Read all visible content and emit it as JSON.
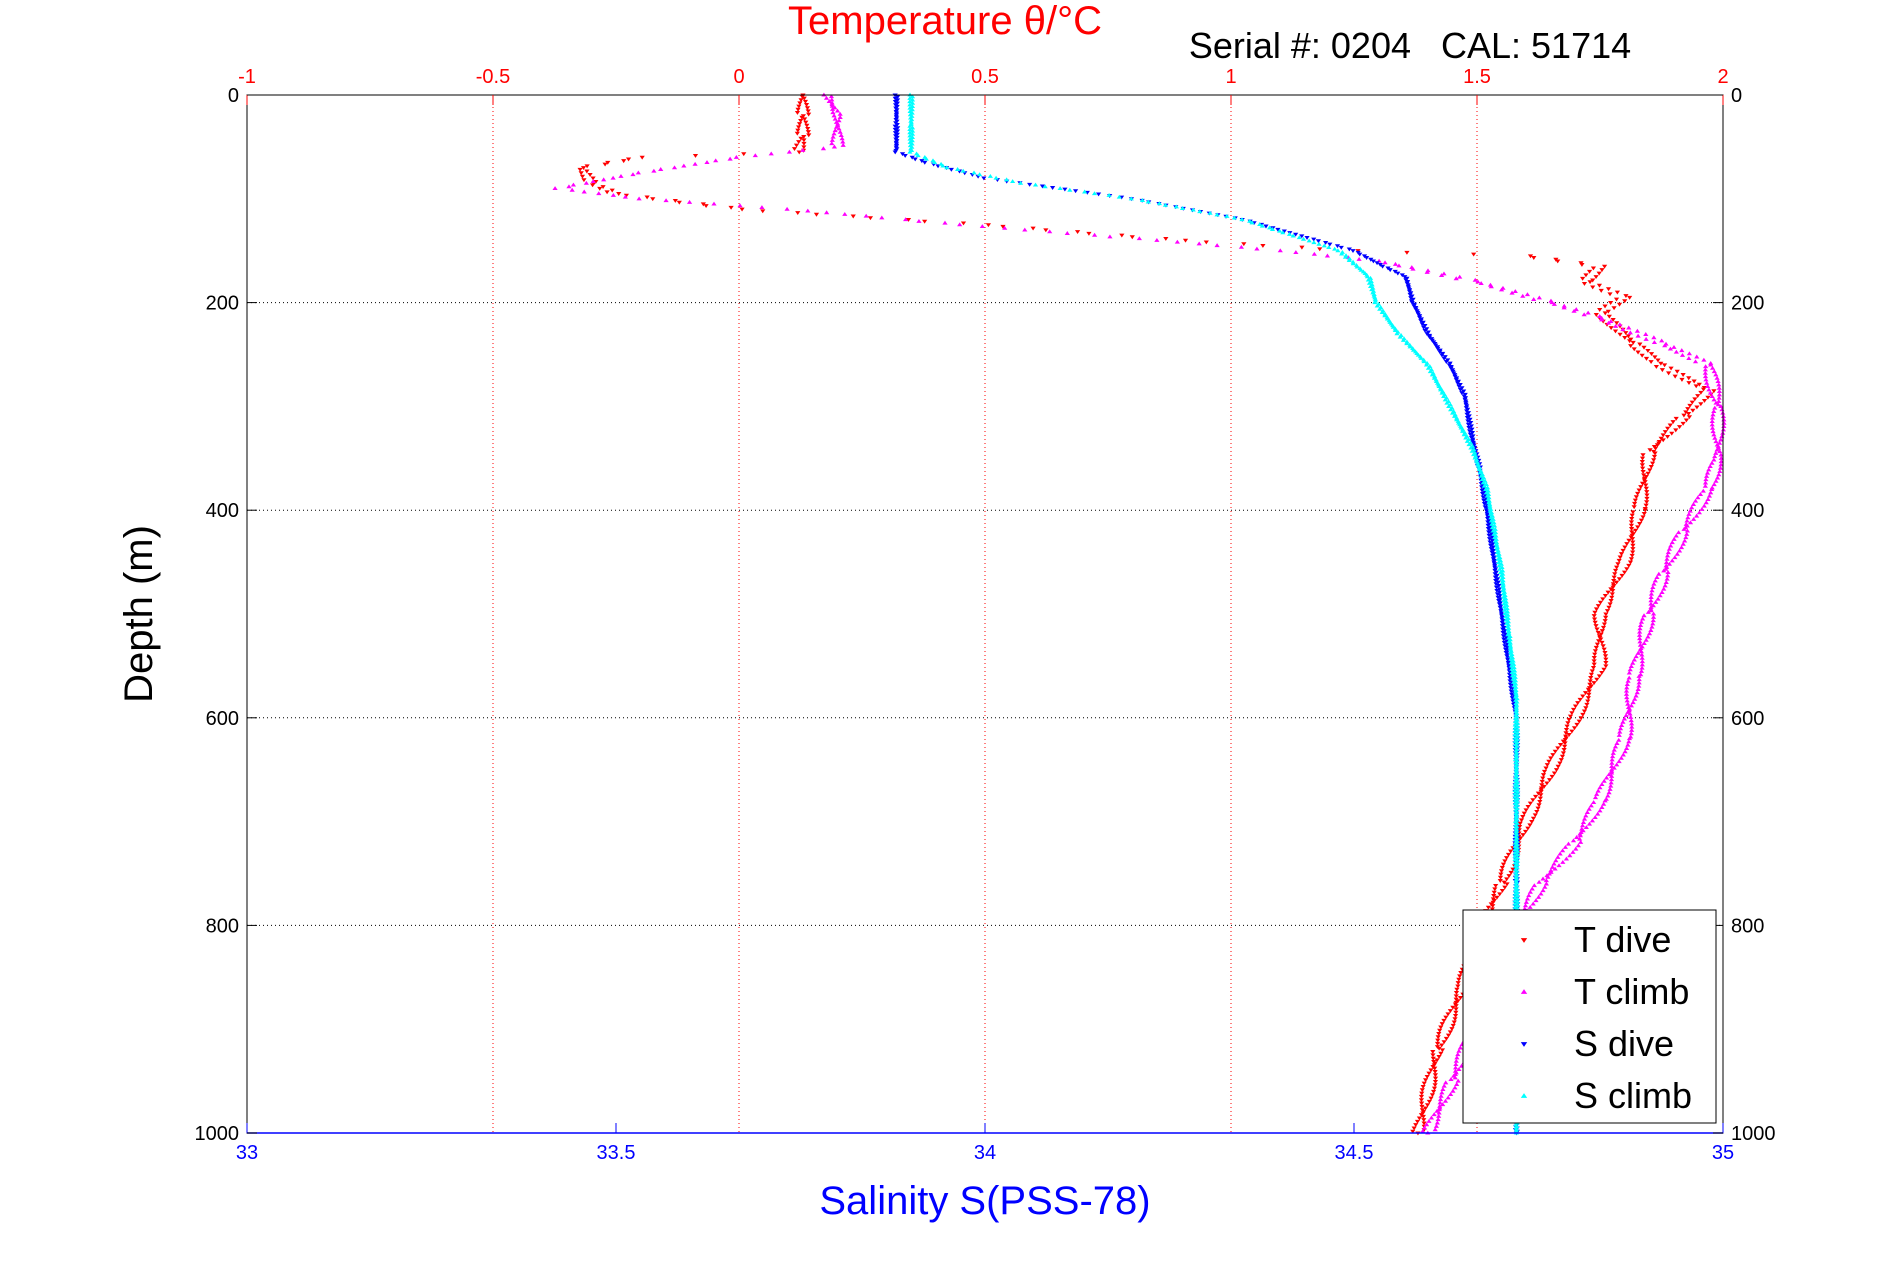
{
  "chart_data": {
    "type": "scatter",
    "title": "Temperature θ/°C",
    "annotation": "Serial #: 0204   CAL: 51714",
    "xlabel_bottom": "Salinity S(PSS-78)",
    "ylabel": "Depth (m)",
    "top_axis": {
      "range": [
        -1,
        2
      ],
      "ticks": [
        "-1",
        "-0.5",
        "0",
        "0.5",
        "1",
        "1.5",
        "2"
      ],
      "color": "#ff0000"
    },
    "bottom_axis": {
      "range": [
        33,
        35
      ],
      "ticks": [
        "33",
        "33.5",
        "34",
        "34.5",
        "35"
      ],
      "color": "#0000ff"
    },
    "y_axis": {
      "range": [
        0,
        1000
      ],
      "reversed": true,
      "ticks": [
        "0",
        "200",
        "400",
        "600",
        "800",
        "1000"
      ]
    },
    "grid": true,
    "legend_placement": "bottom-right",
    "series": [
      {
        "name": "T dive",
        "axis": "top",
        "color": "#ff0000",
        "marker": "triangle-down",
        "points": [
          [
            0.13,
            0
          ],
          [
            0.13,
            20
          ],
          [
            0.13,
            40
          ],
          [
            0.12,
            55
          ],
          [
            -0.2,
            60
          ],
          [
            -0.32,
            70
          ],
          [
            -0.3,
            85
          ],
          [
            -0.25,
            95
          ],
          [
            0.0,
            110
          ],
          [
            0.5,
            125
          ],
          [
            0.9,
            140
          ],
          [
            1.25,
            150
          ],
          [
            1.6,
            155
          ],
          [
            1.75,
            165
          ],
          [
            1.72,
            180
          ],
          [
            1.8,
            195
          ],
          [
            1.75,
            210
          ],
          [
            1.82,
            240
          ],
          [
            1.87,
            260
          ],
          [
            1.97,
            285
          ],
          [
            1.92,
            310
          ],
          [
            1.85,
            345
          ],
          [
            1.83,
            400
          ],
          [
            1.8,
            450
          ],
          [
            1.75,
            500
          ],
          [
            1.75,
            550
          ],
          [
            1.7,
            600
          ],
          [
            1.65,
            650
          ],
          [
            1.6,
            700
          ],
          [
            1.55,
            760
          ],
          [
            1.5,
            810
          ],
          [
            1.47,
            860
          ],
          [
            1.42,
            920
          ],
          [
            1.38,
            1000
          ]
        ]
      },
      {
        "name": "T climb",
        "axis": "top",
        "color": "#ff00ff",
        "marker": "triangle-up",
        "points": [
          [
            0.18,
            0
          ],
          [
            0.2,
            20
          ],
          [
            0.2,
            50
          ],
          [
            0.0,
            60
          ],
          [
            -0.2,
            75
          ],
          [
            -0.37,
            90
          ],
          [
            -0.2,
            100
          ],
          [
            0.1,
            110
          ],
          [
            0.45,
            125
          ],
          [
            0.85,
            140
          ],
          [
            1.1,
            150
          ],
          [
            1.3,
            160
          ],
          [
            1.5,
            180
          ],
          [
            1.65,
            200
          ],
          [
            1.75,
            215
          ],
          [
            1.88,
            240
          ],
          [
            1.97,
            260
          ],
          [
            1.99,
            300
          ],
          [
            1.99,
            350
          ],
          [
            1.97,
            380
          ],
          [
            1.92,
            420
          ],
          [
            1.88,
            460
          ],
          [
            1.85,
            500
          ],
          [
            1.82,
            560
          ],
          [
            1.8,
            620
          ],
          [
            1.75,
            680
          ],
          [
            1.7,
            720
          ],
          [
            1.63,
            760
          ],
          [
            1.57,
            810
          ],
          [
            1.52,
            870
          ],
          [
            1.45,
            950
          ],
          [
            1.4,
            1000
          ]
        ]
      },
      {
        "name": "S dive",
        "axis": "bottom",
        "color": "#0000ff",
        "marker": "triangle-down",
        "points": [
          [
            33.88,
            0
          ],
          [
            33.88,
            30
          ],
          [
            33.88,
            55
          ],
          [
            33.92,
            65
          ],
          [
            34.0,
            80
          ],
          [
            34.2,
            100
          ],
          [
            34.35,
            120
          ],
          [
            34.5,
            150
          ],
          [
            34.54,
            165
          ],
          [
            34.57,
            175
          ],
          [
            34.58,
            200
          ],
          [
            34.6,
            230
          ],
          [
            34.63,
            260
          ],
          [
            34.65,
            290
          ],
          [
            34.66,
            330
          ],
          [
            34.67,
            360
          ],
          [
            34.68,
            400
          ],
          [
            34.69,
            450
          ],
          [
            34.7,
            500
          ],
          [
            34.71,
            550
          ],
          [
            34.72,
            600
          ],
          [
            34.72,
            650
          ],
          [
            34.72,
            700
          ],
          [
            34.72,
            760
          ],
          [
            34.72,
            800
          ],
          [
            34.72,
            900
          ],
          [
            34.72,
            1000
          ]
        ]
      },
      {
        "name": "S climb",
        "axis": "bottom",
        "color": "#00ffff",
        "marker": "triangle-up",
        "points": [
          [
            33.9,
            0
          ],
          [
            33.9,
            30
          ],
          [
            33.9,
            55
          ],
          [
            33.95,
            70
          ],
          [
            34.05,
            85
          ],
          [
            34.2,
            100
          ],
          [
            34.35,
            120
          ],
          [
            34.48,
            150
          ],
          [
            34.52,
            175
          ],
          [
            34.53,
            200
          ],
          [
            34.56,
            230
          ],
          [
            34.6,
            260
          ],
          [
            34.63,
            300
          ],
          [
            34.66,
            340
          ],
          [
            34.68,
            380
          ],
          [
            34.69,
            420
          ],
          [
            34.7,
            460
          ],
          [
            34.71,
            520
          ],
          [
            34.72,
            580
          ],
          [
            34.72,
            640
          ],
          [
            34.72,
            700
          ],
          [
            34.72,
            800
          ],
          [
            34.72,
            900
          ],
          [
            34.72,
            1000
          ]
        ]
      }
    ]
  }
}
